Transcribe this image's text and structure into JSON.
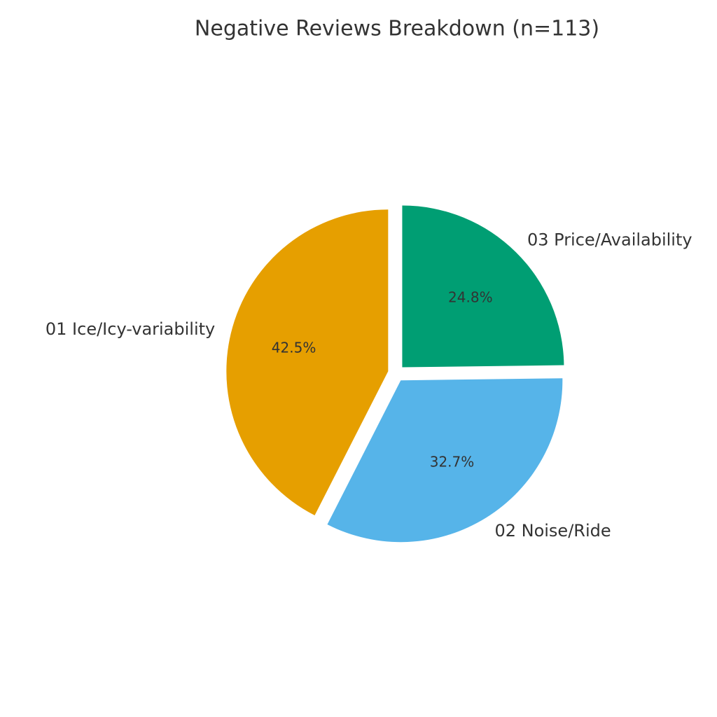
{
  "chart_data": {
    "type": "pie",
    "title": "Negative Reviews Breakdown (n=113)",
    "categories": [
      "01 Ice/Icy-variability",
      "02 Noise/Ride",
      "03 Price/Availability"
    ],
    "values": [
      42.5,
      32.7,
      24.8
    ],
    "value_labels": [
      "42.5%",
      "32.7%",
      "24.8%"
    ],
    "colors": [
      "#E69F00",
      "#56B4E9",
      "#009E73"
    ]
  }
}
